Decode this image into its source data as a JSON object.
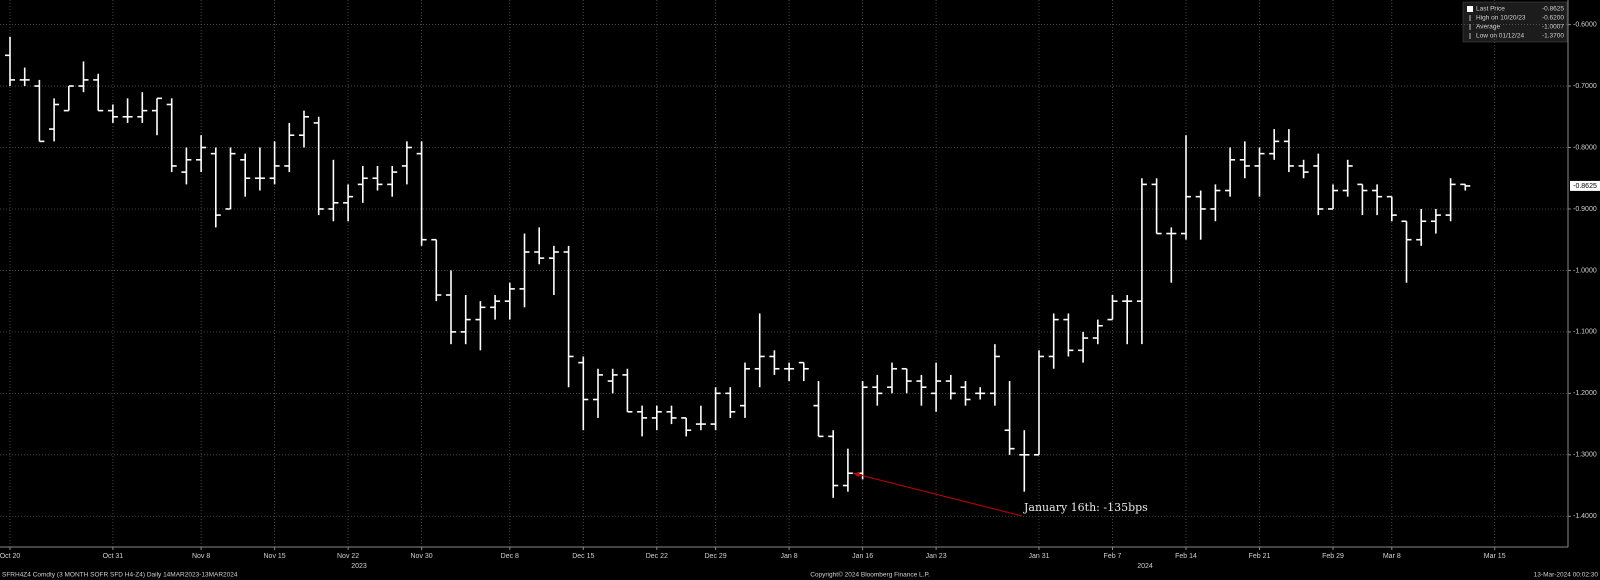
{
  "chart_data": {
    "type": "ohlc",
    "color": "#ffffff",
    "background": "#000000",
    "grid": true,
    "categories": [
      "Oct 20",
      null,
      null,
      null,
      null,
      null,
      null,
      "Oct 31",
      null,
      null,
      null,
      null,
      null,
      "Nov 8",
      null,
      null,
      null,
      null,
      "Nov 15",
      null,
      null,
      null,
      null,
      "Nov 22",
      null,
      null,
      null,
      null,
      "Nov 30",
      null,
      null,
      null,
      null,
      null,
      "Dec 8",
      null,
      null,
      null,
      null,
      "Dec 15",
      null,
      null,
      null,
      null,
      "Dec 22",
      null,
      null,
      null,
      "Dec 29",
      null,
      null,
      null,
      null,
      "Jan 8",
      null,
      null,
      null,
      null,
      "Jan 16",
      null,
      null,
      null,
      null,
      "Jan 23",
      null,
      null,
      null,
      null,
      null,
      null,
      "Jan 31",
      null,
      null,
      null,
      null,
      "Feb 7",
      null,
      null,
      null,
      null,
      "Feb 14",
      null,
      null,
      null,
      null,
      "Feb 21",
      null,
      null,
      null,
      null,
      "Feb 29",
      null,
      null,
      null,
      "Mar 8",
      null,
      null,
      null,
      null,
      null,
      null,
      "Mar 15"
    ],
    "open": [
      -0.65,
      -0.69,
      -0.7,
      -0.77,
      -0.74,
      -0.7,
      -0.69,
      -0.74,
      -0.75,
      -0.75,
      -0.74,
      -0.73,
      -0.84,
      -0.82,
      -0.81,
      -0.9,
      -0.82,
      -0.85,
      -0.85,
      -0.83,
      -0.78,
      -0.76,
      -0.9,
      -0.89,
      -0.86,
      -0.85,
      -0.86,
      -0.83,
      -0.81,
      -0.95,
      -1.04,
      -1.1,
      -1.08,
      -1.06,
      -1.05,
      -1.03,
      -0.97,
      -0.98,
      -0.97,
      -1.15,
      -1.21,
      -1.18,
      -1.17,
      -1.23,
      -1.24,
      -1.23,
      -1.24,
      -1.25,
      -1.25,
      -1.2,
      -1.22,
      -1.16,
      -1.14,
      -1.16,
      -1.15,
      -1.22,
      -1.27,
      -1.35,
      -1.33,
      -1.19,
      -1.19,
      -1.16,
      -1.18,
      -1.2,
      -1.18,
      -1.19,
      -1.2,
      -1.2,
      -1.26,
      -1.3,
      -1.3,
      -1.14,
      -1.08,
      -1.13,
      -1.11,
      -1.08,
      -1.05,
      -1.05,
      -0.86,
      -0.94,
      -0.94,
      -0.88,
      -0.9,
      -0.87,
      -0.82,
      -0.83,
      -0.81,
      -0.79,
      -0.83,
      -0.83,
      -0.9,
      -0.87,
      -0.86,
      -0.87,
      -0.88,
      -0.92,
      -0.95,
      -0.92,
      -0.91,
      -0.86,
      null,
      null
    ],
    "high": [
      -0.62,
      -0.67,
      -0.69,
      -0.72,
      -0.7,
      -0.66,
      -0.68,
      -0.73,
      -0.72,
      -0.71,
      -0.72,
      -0.72,
      -0.8,
      -0.78,
      -0.8,
      -0.8,
      -0.81,
      -0.8,
      -0.79,
      -0.76,
      -0.74,
      -0.75,
      -0.82,
      -0.86,
      -0.83,
      -0.83,
      -0.83,
      -0.79,
      -0.79,
      -0.95,
      -1.0,
      -1.04,
      -1.05,
      -1.04,
      -1.02,
      -0.94,
      -0.93,
      -0.96,
      -0.96,
      -1.14,
      -1.16,
      -1.16,
      -1.16,
      -1.22,
      -1.22,
      -1.22,
      -1.24,
      -1.22,
      -1.19,
      -1.19,
      -1.15,
      -1.07,
      -1.13,
      -1.15,
      -1.15,
      -1.18,
      -1.26,
      -1.29,
      -1.18,
      -1.17,
      -1.15,
      -1.16,
      -1.17,
      -1.15,
      -1.17,
      -1.18,
      -1.19,
      -1.12,
      -1.18,
      -1.26,
      -1.13,
      -1.07,
      -1.07,
      -1.1,
      -1.08,
      -1.04,
      -1.04,
      -0.85,
      -0.85,
      -0.93,
      -0.78,
      -0.87,
      -0.86,
      -0.8,
      -0.79,
      -0.8,
      -0.77,
      -0.77,
      -0.82,
      -0.81,
      -0.86,
      -0.82,
      -0.86,
      -0.86,
      -0.88,
      -0.92,
      -0.9,
      -0.9,
      -0.85,
      -0.86,
      null,
      null
    ],
    "low": [
      -0.7,
      -0.7,
      -0.79,
      -0.79,
      -0.74,
      -0.71,
      -0.74,
      -0.76,
      -0.76,
      -0.76,
      -0.78,
      -0.84,
      -0.86,
      -0.84,
      -0.93,
      -0.9,
      -0.88,
      -0.87,
      -0.86,
      -0.84,
      -0.8,
      -0.91,
      -0.92,
      -0.92,
      -0.89,
      -0.87,
      -0.88,
      -0.86,
      -0.96,
      -1.05,
      -1.12,
      -1.12,
      -1.13,
      -1.08,
      -1.08,
      -1.06,
      -0.99,
      -1.04,
      -1.19,
      -1.26,
      -1.24,
      -1.2,
      -1.23,
      -1.27,
      -1.26,
      -1.25,
      -1.27,
      -1.26,
      -1.26,
      -1.24,
      -1.24,
      -1.19,
      -1.17,
      -1.18,
      -1.18,
      -1.27,
      -1.37,
      -1.36,
      -1.34,
      -1.22,
      -1.2,
      -1.2,
      -1.22,
      -1.23,
      -1.21,
      -1.22,
      -1.21,
      -1.22,
      -1.3,
      -1.36,
      -1.3,
      -1.16,
      -1.14,
      -1.15,
      -1.12,
      -1.08,
      -1.12,
      -1.12,
      -0.94,
      -1.02,
      -0.95,
      -0.95,
      -0.92,
      -0.88,
      -0.85,
      -0.88,
      -0.82,
      -0.84,
      -0.85,
      -0.91,
      -0.9,
      -0.88,
      -0.91,
      -0.91,
      -0.92,
      -1.02,
      -0.96,
      -0.94,
      -0.92,
      -0.87,
      null,
      null
    ],
    "close": [
      -0.69,
      -0.69,
      -0.79,
      -0.73,
      -0.7,
      -0.69,
      -0.74,
      -0.75,
      -0.75,
      -0.74,
      -0.72,
      -0.83,
      -0.82,
      -0.8,
      -0.91,
      -0.81,
      -0.85,
      -0.85,
      -0.83,
      -0.78,
      -0.75,
      -0.9,
      -0.89,
      -0.88,
      -0.85,
      -0.86,
      -0.84,
      -0.8,
      -0.95,
      -1.04,
      -1.1,
      -1.08,
      -1.06,
      -1.05,
      -1.03,
      -0.97,
      -0.98,
      -0.97,
      -1.14,
      -1.21,
      -1.17,
      -1.17,
      -1.23,
      -1.24,
      -1.23,
      -1.24,
      -1.26,
      -1.25,
      -1.2,
      -1.23,
      -1.16,
      -1.14,
      -1.16,
      -1.16,
      -1.16,
      -1.27,
      -1.35,
      -1.33,
      -1.19,
      -1.2,
      -1.16,
      -1.18,
      -1.19,
      -1.18,
      -1.2,
      -1.21,
      -1.2,
      -1.14,
      -1.29,
      -1.3,
      -1.14,
      -1.08,
      -1.13,
      -1.11,
      -1.09,
      -1.05,
      -1.05,
      -0.86,
      -0.94,
      -0.94,
      -0.88,
      -0.9,
      -0.87,
      -0.82,
      -0.83,
      -0.81,
      -0.79,
      -0.83,
      -0.84,
      -0.9,
      -0.87,
      -0.83,
      -0.87,
      -0.88,
      -0.91,
      -0.95,
      -0.92,
      -0.91,
      -0.86,
      -0.8625,
      null,
      null
    ],
    "ylim": [
      -1.45,
      -0.56
    ],
    "yticks": [
      {
        "value": -0.6,
        "label": "-0.6000"
      },
      {
        "value": -0.7,
        "label": "-0.7000"
      },
      {
        "value": -0.8,
        "label": "-0.8000"
      },
      {
        "value": -0.9,
        "label": "-0.9000"
      },
      {
        "value": -1.0,
        "label": "-1.0000"
      },
      {
        "value": -1.1,
        "label": "-1.1000"
      },
      {
        "value": -1.2,
        "label": "-1.2000"
      },
      {
        "value": -1.3,
        "label": "-1.3000"
      },
      {
        "value": -1.4,
        "label": "-1.4000"
      }
    ],
    "years": [
      "2023",
      "2024"
    ],
    "legend": [
      {
        "name": "Last Price",
        "value": -0.8625
      },
      {
        "name": "High on 10/20/23",
        "value": -0.62,
        "value_label": "-0.6200"
      },
      {
        "name": "Average",
        "value": -1.0007
      },
      {
        "name": "Low on 01/12/24",
        "value": -1.37,
        "value_label": "-1.3700"
      }
    ],
    "annotation": {
      "text": "January 16th: -135bps",
      "color": "#cc0000"
    },
    "source": "SFRH4Z4 Comdty (3 MONTH SOFR SFD  H4-Z4)  Daily 14MAR2023-13MAR2024",
    "copyright": "Copyright© 2024 Bloomberg Finance L.P.",
    "timestamp": "13-Mar-2024 00:02:30"
  }
}
